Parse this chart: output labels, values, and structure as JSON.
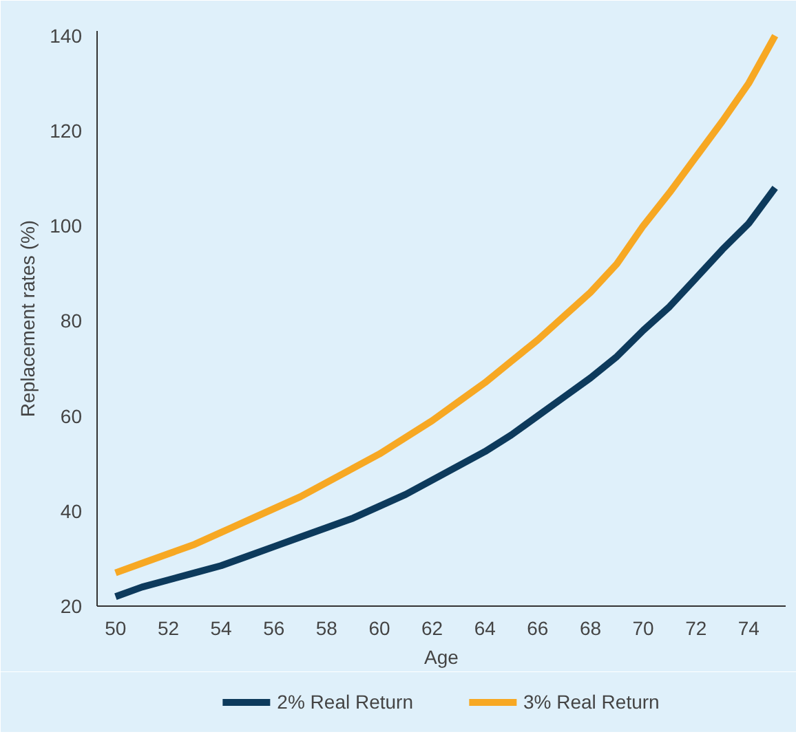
{
  "chart_data": {
    "type": "line",
    "xlabel": "Age",
    "ylabel": "Replacement rates (%)",
    "x": [
      50,
      51,
      52,
      53,
      54,
      55,
      56,
      57,
      58,
      59,
      60,
      61,
      62,
      63,
      64,
      65,
      66,
      67,
      68,
      69,
      70,
      71,
      72,
      73,
      74,
      75
    ],
    "series": [
      {
        "name": "2% Real Return",
        "color": "#0d3a5c",
        "values": [
          22,
          24,
          25.5,
          27,
          28.5,
          30.5,
          32.5,
          34.5,
          36.5,
          38.5,
          41,
          43.5,
          46.5,
          49.5,
          52.5,
          56,
          60,
          64,
          68,
          72.5,
          78,
          83,
          89,
          95,
          100.5,
          108
        ]
      },
      {
        "name": "3% Real Return",
        "color": "#f7a823",
        "values": [
          27,
          29,
          31,
          33,
          35.5,
          38,
          40.5,
          43,
          46,
          49,
          52,
          55.5,
          59,
          63,
          67,
          71.5,
          76,
          81,
          86,
          92,
          100,
          107,
          114.5,
          122,
          130,
          140
        ]
      }
    ],
    "xlim": [
      49.3,
      75.4
    ],
    "ylim": [
      20,
      141
    ],
    "xticks": [
      50,
      52,
      54,
      56,
      58,
      60,
      62,
      64,
      66,
      68,
      70,
      72,
      74
    ],
    "yticks": [
      20,
      40,
      60,
      80,
      100,
      120,
      140
    ],
    "grid": false,
    "legend": "bottom",
    "marker": "none",
    "line_style": "solid"
  }
}
